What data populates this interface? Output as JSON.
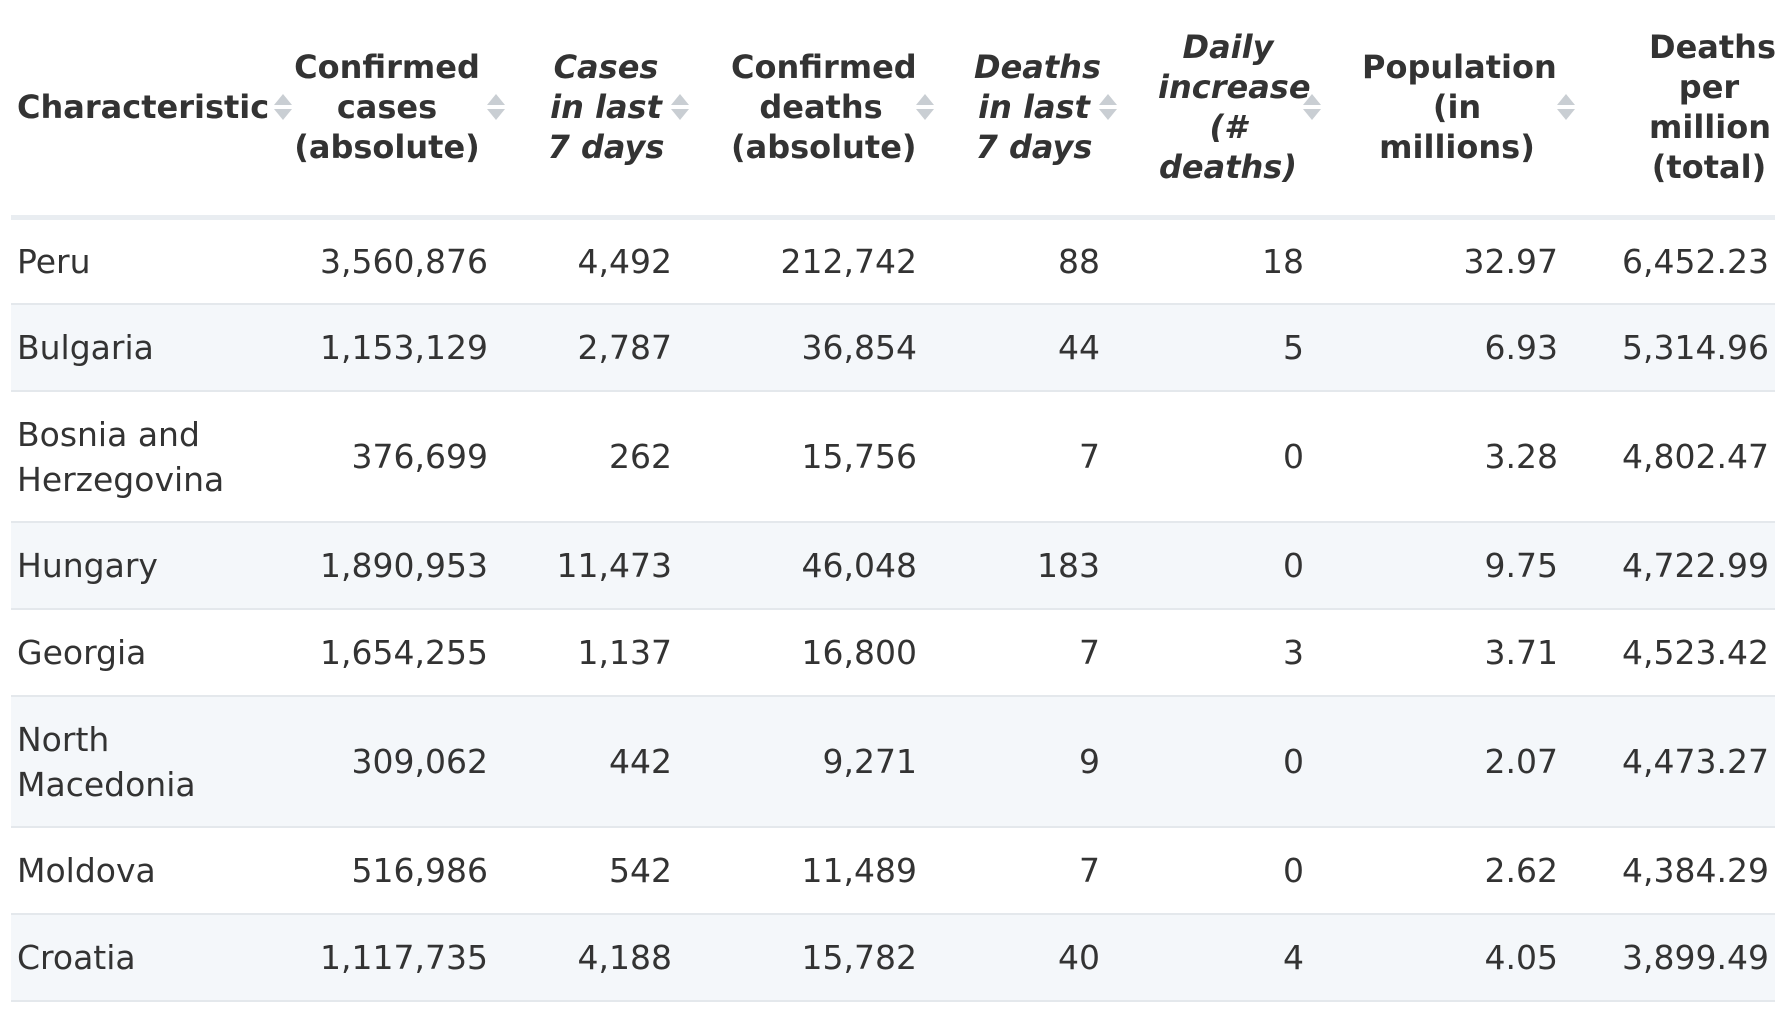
{
  "chart_data": {
    "type": "table",
    "columns": [
      {
        "label": "Characteristic",
        "italic": false
      },
      {
        "label": "Confirmed cases (absolute)",
        "italic": false
      },
      {
        "label": "Cases in last 7 days",
        "italic": true
      },
      {
        "label": "Confirmed deaths (absolute)",
        "italic": false
      },
      {
        "label": "Deaths in last 7 days",
        "italic": true
      },
      {
        "label": "Daily increase (# deaths)",
        "italic": true
      },
      {
        "label": "Population (in millions)",
        "italic": false
      },
      {
        "label": "Deaths per million (total)",
        "italic": false
      }
    ],
    "rows": [
      [
        "Peru",
        "3,560,876",
        "4,492",
        "212,742",
        "88",
        "18",
        "32.97",
        "6,452.23"
      ],
      [
        "Bulgaria",
        "1,153,129",
        "2,787",
        "36,854",
        "44",
        "5",
        "6.93",
        "5,314.96"
      ],
      [
        "Bosnia and Herzegovina",
        "376,699",
        "262",
        "15,756",
        "7",
        "0",
        "3.28",
        "4,802.47"
      ],
      [
        "Hungary",
        "1,890,953",
        "11,473",
        "46,048",
        "183",
        "0",
        "9.75",
        "4,722.99"
      ],
      [
        "Georgia",
        "1,654,255",
        "1,137",
        "16,800",
        "7",
        "3",
        "3.71",
        "4,523.42"
      ],
      [
        "North Macedonia",
        "309,062",
        "442",
        "9,271",
        "9",
        "0",
        "2.07",
        "4,473.27"
      ],
      [
        "Moldova",
        "516,986",
        "542",
        "11,489",
        "7",
        "0",
        "2.62",
        "4,384.29"
      ],
      [
        "Croatia",
        "1,117,735",
        "4,188",
        "15,782",
        "40",
        "4",
        "4.05",
        "3,899.49"
      ]
    ]
  },
  "colors": {
    "text": "#333333",
    "row_stripe": "#f4f7fa",
    "divider": "#e4e8ec",
    "sort_icon": "#c9ced3"
  }
}
